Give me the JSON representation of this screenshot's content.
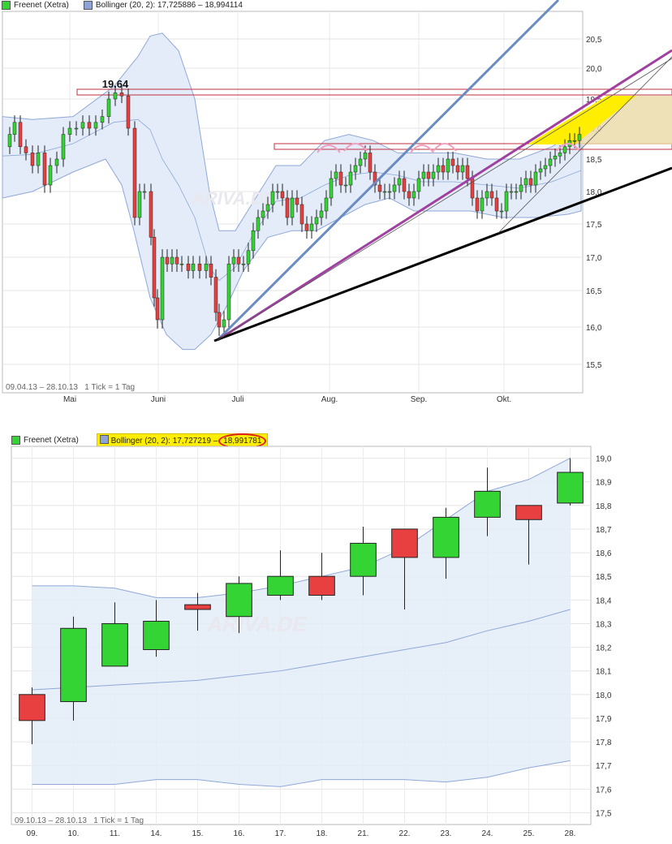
{
  "top_chart": {
    "legend": {
      "series_label": "Freenet (Xetra)",
      "indicator_label": "Bollinger (20, 2): 17,725886 – 18,994114"
    },
    "footer": "09.04.13 – 28.10.13   1 Tick = 1 Tag",
    "peak_annotation": "19.64",
    "x_month_labels": [
      "Mai",
      "Juni",
      "Juli",
      "Aug.",
      "Sep.",
      "Okt."
    ],
    "y_tick_labels": [
      "15,5",
      "16,0",
      "16,5",
      "17,0",
      "17,5",
      "18,0",
      "18,5",
      "19,0",
      "19,5",
      "20,0",
      "20,5"
    ],
    "watermark": "ARIVA.DE"
  },
  "bottom_chart": {
    "legend": {
      "series_label": "Freenet (Xetra)",
      "indicator_prefix": "Bollinger (20, 2): 17,727219",
      "indicator_sep": " – ",
      "indicator_upper_highlight": "18,991781"
    },
    "footer": "09.10.13 – 28.10.13   1 Tick = 1 Tag",
    "x_day_labels": [
      "09.",
      "10.",
      "11.",
      "14.",
      "15.",
      "16.",
      "17.",
      "18.",
      "21.",
      "22.",
      "23.",
      "24.",
      "25.",
      "28."
    ],
    "y_tick_labels": [
      "17,5",
      "17,6",
      "17,7",
      "17,8",
      "17,9",
      "18,0",
      "18,1",
      "18,2",
      "18,3",
      "18,4",
      "18,5",
      "18,6",
      "18,7",
      "18,8",
      "18,9",
      "19,0"
    ],
    "watermark": "ARIVA.DE"
  },
  "colors": {
    "up": "#35d435",
    "down": "#e84040",
    "band_fill": "#e3ecf8",
    "band_line": "#8fa8d8",
    "trend_blue": "#6a8cc0",
    "trend_purple": "#a040a0",
    "trend_black": "#000000",
    "resistance": "#c03040",
    "highlight": "#ffee00"
  },
  "chart_data": [
    {
      "type": "candlestick",
      "name": "Freenet (Xetra) 09.04.13 – 28.10.13",
      "y_range": [
        15.3,
        20.8
      ],
      "x_range": [
        "2013-04-09",
        "2013-10-28"
      ],
      "series": [
        {
          "name": "Freenet (Xetra)",
          "summary": {
            "start": "2013-04-09",
            "end": "2013-10-28",
            "high": 19.64,
            "low": 15.85
          }
        },
        {
          "name": "Bollinger (20, 2)",
          "lower": 17.725886,
          "upper": 18.994114
        }
      ],
      "annotations": [
        "19.64"
      ],
      "y_scale": "linear"
    },
    {
      "type": "candlestick",
      "name": "Freenet (Xetra) 09.10.13 – 28.10.13",
      "categories": [
        "09.",
        "10.",
        "11.",
        "14.",
        "15.",
        "16.",
        "17.",
        "18.",
        "21.",
        "22.",
        "23.",
        "24.",
        "25.",
        "28."
      ],
      "ylim": [
        17.45,
        19.05
      ],
      "series": [
        {
          "name": "Freenet (Xetra)",
          "open": [
            18.0,
            17.97,
            18.12,
            18.19,
            18.38,
            18.33,
            18.42,
            18.5,
            18.5,
            18.7,
            18.58,
            18.75,
            18.8,
            18.81
          ],
          "high": [
            18.03,
            18.33,
            18.39,
            18.4,
            18.43,
            18.5,
            18.61,
            18.6,
            18.71,
            18.7,
            18.79,
            18.96,
            18.8,
            19.0
          ],
          "low": [
            17.79,
            17.89,
            18.12,
            18.16,
            18.27,
            18.26,
            18.4,
            18.4,
            18.42,
            18.36,
            18.49,
            18.67,
            18.55,
            18.8
          ],
          "close": [
            17.89,
            18.28,
            18.3,
            18.31,
            18.36,
            18.47,
            18.5,
            18.42,
            18.64,
            18.58,
            18.75,
            18.86,
            18.74,
            18.94
          ]
        },
        {
          "name": "Bollinger (20, 2)",
          "upper": [
            18.46,
            18.46,
            18.45,
            18.41,
            18.41,
            18.43,
            18.46,
            18.5,
            18.54,
            18.62,
            18.74,
            18.86,
            18.91,
            19.0
          ],
          "middle": [
            18.02,
            18.03,
            18.04,
            18.05,
            18.06,
            18.08,
            18.1,
            18.13,
            18.16,
            18.19,
            18.22,
            18.27,
            18.31,
            18.36
          ],
          "lower": [
            17.62,
            17.62,
            17.62,
            17.64,
            17.64,
            17.62,
            17.61,
            17.64,
            17.64,
            17.64,
            17.63,
            17.65,
            17.69,
            17.72
          ]
        }
      ],
      "x_label": "",
      "y_label": ""
    }
  ]
}
